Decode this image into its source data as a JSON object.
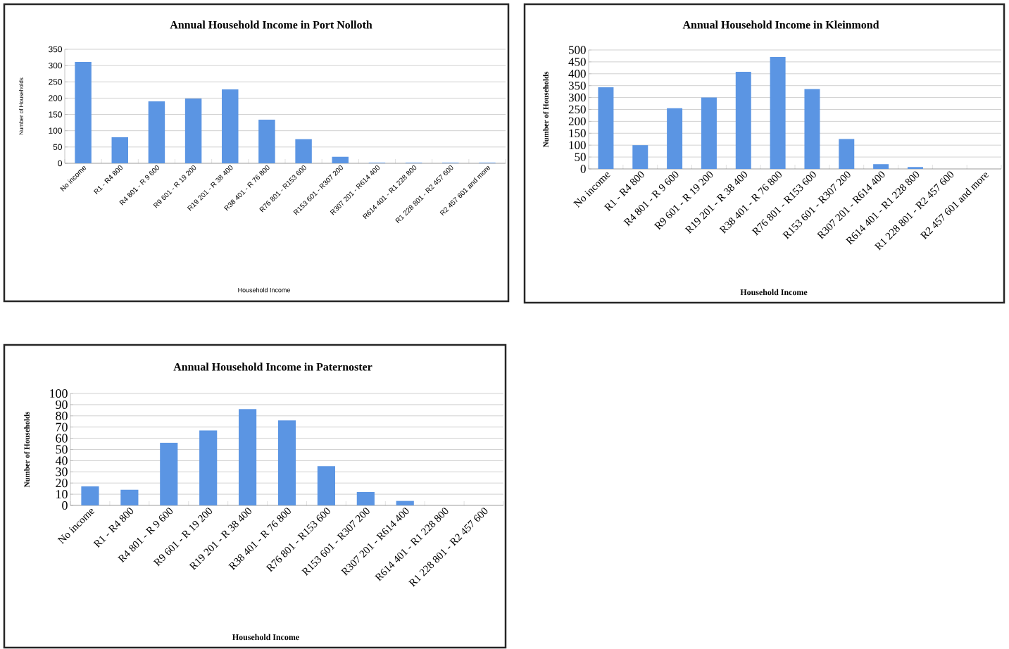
{
  "chart_data": [
    {
      "type": "bar",
      "title": "Annual Household Income in Port Nolloth",
      "xlabel": "Household Income",
      "ylabel": "Number of Households",
      "categories": [
        "No income",
        "R1 - R4 800",
        "R4 801 - R 9 600",
        "R9 601 - R 19 200",
        "R19 201 - R 38 400",
        "R38 401 - R 76 800",
        "R76 801 - R153 600",
        "R153 601 - R307 200",
        "R307 201 - R614 400",
        "R614 401 - R1 228 800",
        "R1 228 801 - R2 457 600",
        "R2 457 601 and more"
      ],
      "values": [
        311,
        80,
        190,
        199,
        227,
        134,
        74,
        20,
        2,
        2,
        2,
        2
      ],
      "color": "#5b95e3",
      "ylim": [
        0,
        350
      ],
      "yticks": [
        0,
        50,
        100,
        150,
        200,
        250,
        300,
        350
      ],
      "grid": "y"
    },
    {
      "type": "bar",
      "title": "Annual Household Income in Kleinmond",
      "xlabel": "Household  Income",
      "ylabel": "Number of Households",
      "categories": [
        "No income",
        "R1 - R4 800",
        "R4 801 - R 9 600",
        "R9 601 - R 19 200",
        "R19 201 - R 38 400",
        "R38 401 - R 76 800",
        "R76 801 - R153 600",
        "R153 601 - R307 200",
        "R307 201 - R614 400",
        "R614 401 - R1 228 800",
        "R1 228 801 - R2 457 600",
        "R2 457 601 and more"
      ],
      "values": [
        343,
        100,
        255,
        300,
        408,
        470,
        336,
        126,
        20,
        8,
        0,
        0
      ],
      "color": "#5b95e3",
      "ylim": [
        0,
        500
      ],
      "yticks": [
        0,
        50,
        100,
        150,
        200,
        250,
        300,
        350,
        400,
        450,
        500
      ],
      "grid": "y"
    },
    {
      "type": "bar",
      "title": "Annual Household Income in Paternoster",
      "xlabel": "Household  Income",
      "ylabel": "Number of Households",
      "categories": [
        "No income",
        "R1 - R4 800",
        "R4 801 - R 9 600",
        "R9 601 - R 19 200",
        "R19 201 - R 38 400",
        "R38 401 - R 76 800",
        "R76 801 - R153 600",
        "R153 601 - R307 200",
        "R307 201 - R614 400",
        "R614 401 - R1 228 800",
        "R1 228 801 - R2 457 600"
      ],
      "values": [
        17,
        14,
        56,
        67,
        86,
        76,
        35,
        12,
        4,
        0,
        0
      ],
      "color": "#5b95e3",
      "ylim": [
        0,
        100
      ],
      "yticks": [
        0,
        10,
        20,
        30,
        40,
        50,
        60,
        70,
        80,
        90,
        100
      ],
      "grid": "y"
    }
  ]
}
